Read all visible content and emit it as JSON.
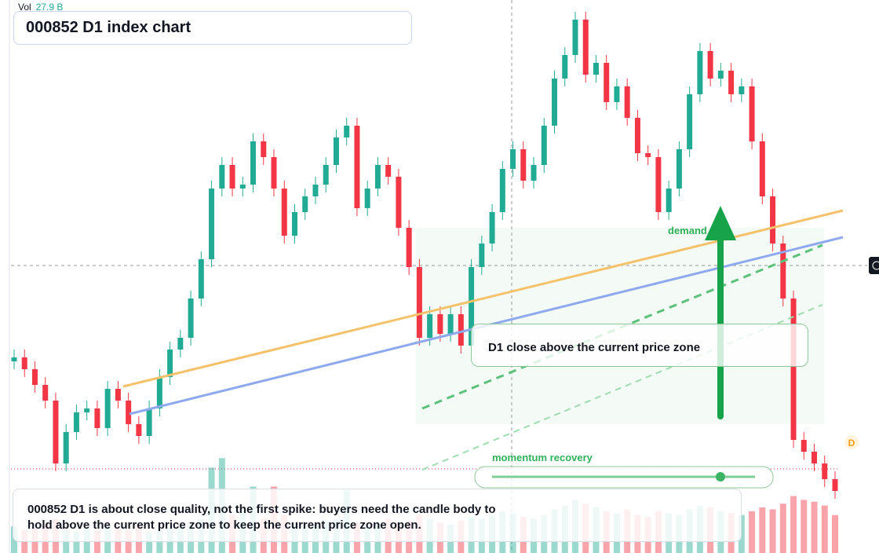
{
  "chart_data": {
    "type": "candlestick",
    "title": "000852 D1 index chart",
    "vol_label": "Vol",
    "vol_value": "27.9 B",
    "annotations": {
      "demand": "demand side",
      "zone": "D1 close above the current price zone",
      "momentum": "momentum recovery",
      "note": "000852 D1 is about close quality, not the first spike: buyers need the candle body to hold above the current price zone to keep the current price zone open.",
      "badge": "D"
    },
    "up_color": "#22ab94",
    "down_color": "#f23645",
    "ylim": [
      0,
      704
    ],
    "vol_ylim": [
      0,
      60
    ],
    "open": [
      244,
      249,
      234,
      214,
      194,
      114,
      154,
      179,
      184,
      159,
      209,
      194,
      164,
      149,
      184,
      224,
      259,
      274,
      324,
      374,
      464,
      494,
      464,
      469,
      524,
      504,
      464,
      404,
      434,
      454,
      469,
      494,
      529,
      544,
      439,
      464,
      494,
      479,
      414,
      364,
      274,
      304,
      279,
      304,
      264,
      364,
      394,
      434,
      489,
      514,
      474,
      494,
      544,
      604,
      634,
      679,
      609,
      624,
      574,
      594,
      554,
      509,
      504,
      434,
      464,
      514,
      584,
      639,
      604,
      614,
      584,
      594,
      524,
      454,
      394,
      324,
      144,
      129,
      114,
      94
    ],
    "high": [
      259,
      259,
      244,
      224,
      204,
      164,
      189,
      194,
      194,
      219,
      219,
      204,
      174,
      194,
      234,
      269,
      284,
      334,
      384,
      474,
      504,
      504,
      479,
      534,
      534,
      514,
      474,
      444,
      464,
      479,
      504,
      539,
      554,
      554,
      474,
      504,
      504,
      489,
      424,
      374,
      314,
      314,
      314,
      314,
      374,
      404,
      444,
      499,
      524,
      524,
      504,
      554,
      614,
      644,
      689,
      689,
      634,
      634,
      604,
      604,
      564,
      519,
      514,
      474,
      524,
      594,
      649,
      649,
      624,
      624,
      604,
      604,
      534,
      464,
      404,
      334,
      154,
      139,
      124,
      104
    ],
    "low": [
      234,
      224,
      204,
      184,
      104,
      104,
      144,
      169,
      149,
      149,
      184,
      154,
      139,
      139,
      174,
      214,
      249,
      264,
      314,
      364,
      454,
      454,
      454,
      459,
      494,
      454,
      394,
      394,
      424,
      444,
      459,
      484,
      519,
      429,
      429,
      454,
      469,
      404,
      354,
      264,
      264,
      269,
      269,
      254,
      254,
      354,
      384,
      424,
      479,
      464,
      464,
      484,
      534,
      594,
      624,
      599,
      599,
      564,
      564,
      544,
      499,
      494,
      424,
      424,
      454,
      504,
      574,
      594,
      594,
      574,
      574,
      514,
      444,
      384,
      314,
      134,
      119,
      104,
      84,
      69
    ],
    "close": [
      249,
      234,
      214,
      194,
      114,
      154,
      179,
      184,
      159,
      209,
      194,
      164,
      149,
      184,
      224,
      259,
      274,
      324,
      374,
      464,
      494,
      464,
      469,
      524,
      504,
      464,
      404,
      434,
      454,
      469,
      494,
      529,
      544,
      439,
      464,
      494,
      479,
      414,
      364,
      274,
      304,
      279,
      304,
      264,
      364,
      394,
      434,
      489,
      514,
      474,
      494,
      544,
      604,
      634,
      679,
      609,
      624,
      574,
      594,
      554,
      509,
      504,
      434,
      464,
      514,
      584,
      639,
      604,
      614,
      584,
      594,
      524,
      454,
      394,
      324,
      144,
      129,
      114,
      94,
      79
    ],
    "volume": [
      14,
      12,
      13,
      15,
      18,
      12,
      11,
      13,
      12,
      14,
      13,
      12,
      15,
      11,
      12,
      13,
      14,
      15,
      18,
      45,
      50,
      20,
      22,
      35,
      18,
      35,
      20,
      16,
      14,
      15,
      17,
      18,
      33,
      16,
      14,
      15,
      18,
      16,
      17,
      20,
      18,
      16,
      15,
      17,
      19,
      18,
      20,
      22,
      21,
      19,
      18,
      20,
      23,
      25,
      28,
      26,
      24,
      22,
      21,
      23,
      20,
      19,
      22,
      21,
      20,
      23,
      25,
      24,
      22,
      21,
      20,
      22,
      24,
      23,
      26,
      30,
      28,
      27,
      25,
      20
    ]
  }
}
